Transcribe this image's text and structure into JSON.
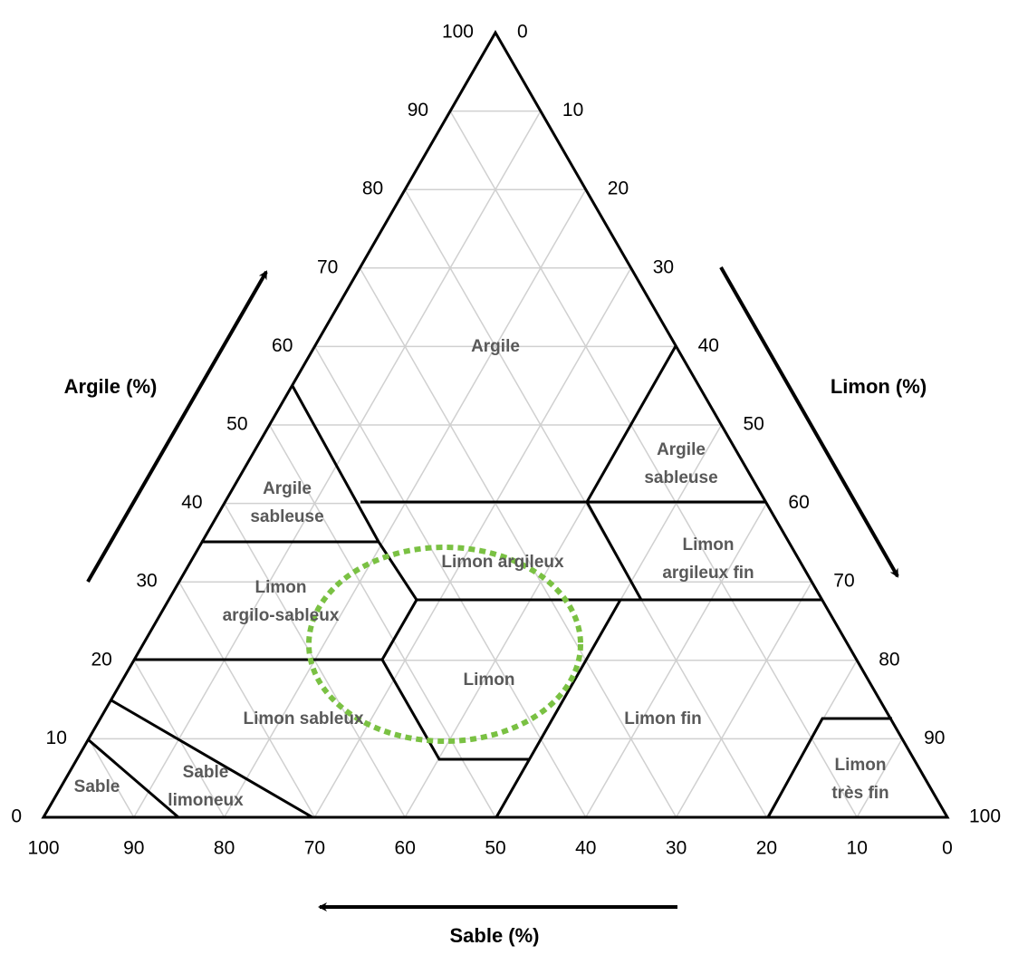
{
  "axes": {
    "argile": {
      "label": "Argile (%)",
      "ticks": [
        0,
        10,
        20,
        30,
        40,
        50,
        60,
        70,
        80,
        90,
        100
      ]
    },
    "limon": {
      "label": "Limon (%)",
      "ticks": [
        0,
        10,
        20,
        30,
        40,
        50,
        60,
        70,
        80,
        90,
        100
      ]
    },
    "sable": {
      "label": "Sable (%)",
      "ticks": [
        100,
        90,
        80,
        70,
        60,
        50,
        40,
        30,
        20,
        10,
        0
      ]
    }
  },
  "regions": [
    {
      "lines": [
        "Argile"
      ]
    },
    {
      "lines": [
        "Argile",
        "sableuse"
      ]
    },
    {
      "lines": [
        "Argile",
        "sableuse"
      ]
    },
    {
      "lines": [
        "Limon argileux"
      ]
    },
    {
      "lines": [
        "Limon",
        "argileux fin"
      ]
    },
    {
      "lines": [
        "Limon",
        "argilo-sableux"
      ]
    },
    {
      "lines": [
        "Limon"
      ]
    },
    {
      "lines": [
        "Limon sableux"
      ]
    },
    {
      "lines": [
        "Limon fin"
      ]
    },
    {
      "lines": [
        "Sable"
      ]
    },
    {
      "lines": [
        "Sable",
        "limoneux"
      ]
    },
    {
      "lines": [
        "Limon",
        "très fin"
      ]
    }
  ]
}
